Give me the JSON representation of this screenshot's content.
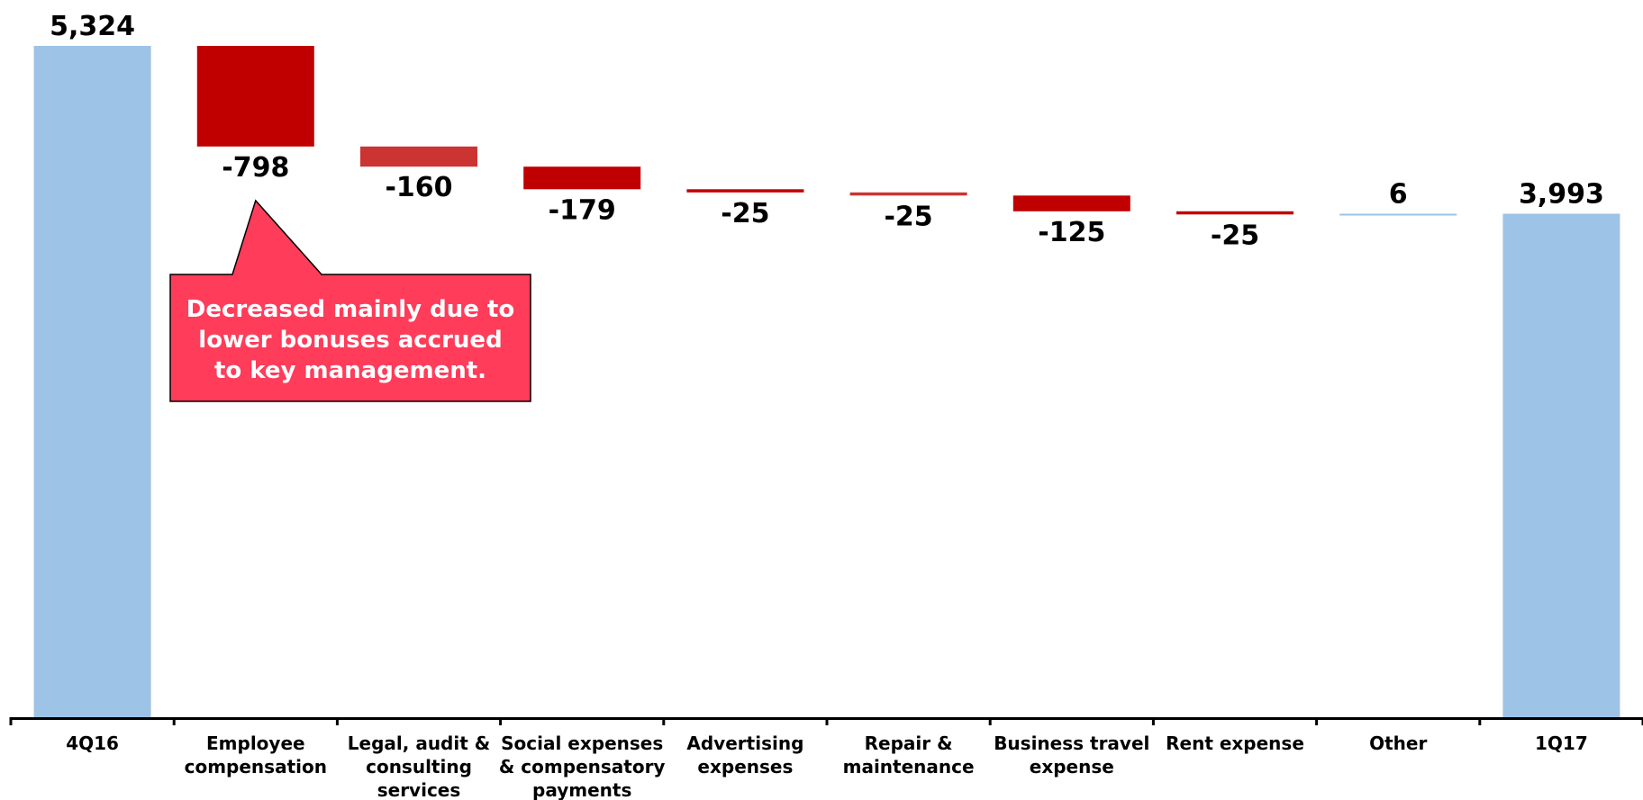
{
  "chart_data": {
    "type": "waterfall",
    "categories": [
      [
        "4Q16"
      ],
      [
        "Employee",
        "compensation"
      ],
      [
        "Legal, audit &",
        "consulting",
        "services"
      ],
      [
        "Social expenses",
        "& compensatory",
        "payments"
      ],
      [
        "Advertising",
        "expenses"
      ],
      [
        "Repair &",
        "maintenance"
      ],
      [
        "Business travel",
        "expense"
      ],
      [
        "Rent expense"
      ],
      [
        "Other"
      ],
      [
        "1Q17"
      ]
    ],
    "values": [
      5324,
      -798,
      -160,
      -179,
      -25,
      -25,
      -125,
      -25,
      6,
      3993
    ],
    "value_labels": [
      "5,324",
      "-798",
      "-160",
      "-179",
      "-25",
      "-25",
      "-125",
      "-25",
      "6",
      "3,993"
    ],
    "kinds": [
      "total",
      "delta",
      "delta",
      "delta",
      "delta",
      "delta",
      "delta",
      "delta",
      "delta",
      "total"
    ],
    "ylim": [
      0,
      5324
    ],
    "grid": false,
    "colors": {
      "total": "#9dc3e6",
      "decrease": "#c00000",
      "decrease_light": "#cc3333",
      "increase": "#9dc3e6",
      "axis": "#000000"
    },
    "bar_colors": [
      "#9dc3e6",
      "#c00000",
      "#cc3333",
      "#c00000",
      "#c00000",
      "#cc3333",
      "#c00000",
      "#c00000",
      "#9dc3e6",
      "#9dc3e6"
    ],
    "annotation": {
      "lines": [
        "Decreased mainly due to",
        "lower bonuses accrued",
        "to key management."
      ],
      "target_category": 1,
      "fill": "#ff3c5a",
      "border": "#000000"
    }
  }
}
